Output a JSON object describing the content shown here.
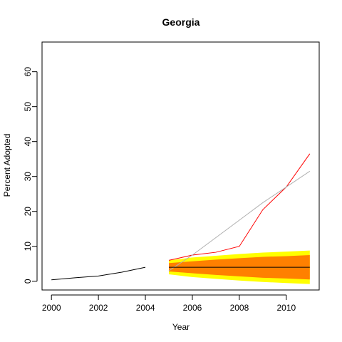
{
  "chart_data": {
    "type": "line",
    "title": "Georgia",
    "xlabel": "Year",
    "ylabel": "Percent Adopted",
    "xlim": [
      1999.6,
      2011.4
    ],
    "ylim": [
      -2.5,
      68.5
    ],
    "x_ticks": [
      2000,
      2002,
      2004,
      2006,
      2008,
      2010
    ],
    "y_ticks": [
      0,
      10,
      20,
      30,
      40,
      50,
      60
    ],
    "grid": false,
    "legend": "none",
    "series": [
      {
        "color": "#000000",
        "x": [
          2000,
          2001,
          2002,
          2003,
          2004
        ],
        "y": [
          0.4,
          1.0,
          1.5,
          2.6,
          4.0
        ]
      },
      {
        "color": "#ff0000",
        "x": [
          2005,
          2006,
          2007,
          2008,
          2009,
          2010,
          2011
        ],
        "y": [
          6.0,
          7.5,
          8.3,
          10.0,
          20.5,
          27.0,
          36.5
        ]
      },
      {
        "color": "#b0b0b0",
        "x": [
          2005,
          2006,
          2007,
          2008,
          2009,
          2010,
          2011
        ],
        "y": [
          3.0,
          7.5,
          12.5,
          17.5,
          22.5,
          27.0,
          31.5
        ]
      },
      {
        "color": "#000000",
        "x": [
          2005,
          2011
        ],
        "y": [
          4.0,
          4.0
        ]
      }
    ],
    "bands": [
      {
        "color": "#ffff00",
        "x": [
          2005,
          2006,
          2007,
          2008,
          2009,
          2010,
          2011
        ],
        "upper": [
          6.0,
          6.8,
          7.3,
          7.8,
          8.2,
          8.5,
          8.8
        ],
        "lower": [
          2.0,
          1.2,
          0.7,
          0.2,
          -0.2,
          -0.5,
          -0.8
        ]
      },
      {
        "color": "#ff8000",
        "x": [
          2005,
          2006,
          2007,
          2008,
          2009,
          2010,
          2011
        ],
        "upper": [
          5.2,
          5.7,
          6.2,
          6.6,
          7.0,
          7.2,
          7.5
        ],
        "lower": [
          2.8,
          2.3,
          1.8,
          1.4,
          1.0,
          0.8,
          0.5
        ]
      }
    ]
  }
}
